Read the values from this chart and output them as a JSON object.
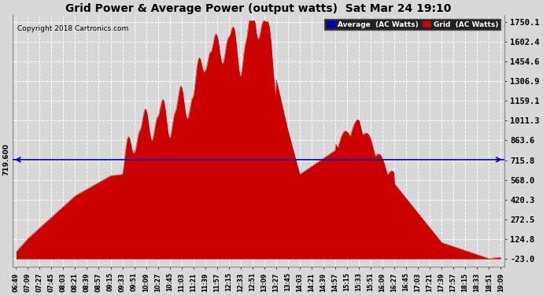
{
  "title": "Grid Power & Average Power (output watts)  Sat Mar 24 19:10",
  "copyright": "Copyright 2018 Cartronics.com",
  "average_value": 719.6,
  "y_min": -23.0,
  "y_max": 1750.1,
  "y_ticks": [
    1750.1,
    1602.4,
    1454.6,
    1306.9,
    1159.1,
    1011.3,
    863.6,
    715.8,
    568.0,
    420.3,
    272.5,
    124.8,
    -23.0
  ],
  "avg_label": "719.600",
  "x_labels": [
    "06:49",
    "07:09",
    "07:27",
    "07:45",
    "08:03",
    "08:21",
    "08:39",
    "08:57",
    "09:15",
    "09:33",
    "09:51",
    "10:09",
    "10:27",
    "10:45",
    "11:03",
    "11:21",
    "11:39",
    "11:57",
    "12:15",
    "12:33",
    "12:51",
    "13:09",
    "13:27",
    "13:45",
    "14:03",
    "14:21",
    "14:39",
    "14:57",
    "15:15",
    "15:33",
    "15:51",
    "16:09",
    "16:27",
    "16:45",
    "17:03",
    "17:21",
    "17:39",
    "17:57",
    "18:15",
    "18:33",
    "18:51",
    "19:09"
  ],
  "bg_color": "#d8d8d8",
  "grid_color": "#ffffff",
  "area_color": "#cc0000",
  "avg_line_color": "#0000bb",
  "title_color": "#000000",
  "legend_avg_bg": "#0000bb",
  "legend_grid_bg": "#cc0000"
}
